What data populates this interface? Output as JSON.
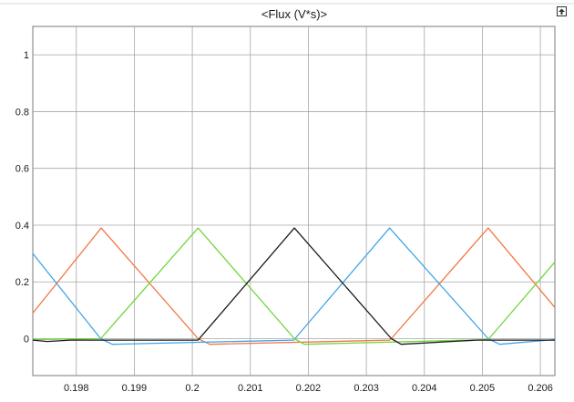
{
  "title": "<Flux (V*s)>",
  "icons": {
    "undock": "undock-icon"
  },
  "chart_data": {
    "type": "line",
    "title": "<Flux (V*s)>",
    "xlabel": "",
    "ylabel": "",
    "xlim": [
      0.19725,
      0.20625
    ],
    "ylim": [
      -0.13,
      1.1
    ],
    "grid": true,
    "legend": "none",
    "x_ticks": [
      0.198,
      0.199,
      0.2,
      0.201,
      0.202,
      0.203,
      0.204,
      0.205,
      0.206
    ],
    "x_tick_labels": [
      "0.198",
      "0.199",
      "0.2",
      "0.201",
      "0.202",
      "0.203",
      "0.204",
      "0.205",
      "0.206"
    ],
    "y_ticks": [
      0,
      0.2,
      0.4,
      0.6,
      0.8,
      1
    ],
    "y_tick_labels": [
      "0",
      "0.2",
      "0.4",
      "0.6",
      "0.8",
      "1"
    ],
    "series": [
      {
        "color": "#f37545",
        "points": [
          [
            0.19725,
            0.09
          ],
          [
            0.19843,
            0.39
          ],
          [
            0.2001,
            0.0
          ],
          [
            0.2003,
            -0.02
          ],
          [
            0.2034,
            -0.005
          ],
          [
            0.20343,
            0.0
          ],
          [
            0.2051,
            0.39
          ],
          [
            0.20625,
            0.11
          ]
        ]
      },
      {
        "color": "#3fa4e8",
        "points": [
          [
            0.19725,
            0.3
          ],
          [
            0.19842,
            0.0
          ],
          [
            0.19862,
            -0.02
          ],
          [
            0.20175,
            -0.005
          ],
          [
            0.20177,
            0.0
          ],
          [
            0.2034,
            0.39
          ],
          [
            0.2051,
            0.0
          ],
          [
            0.2053,
            -0.02
          ],
          [
            0.20625,
            -0.003
          ]
        ]
      },
      {
        "color": "#6fd63d",
        "points": [
          [
            0.19725,
            -0.003
          ],
          [
            0.19842,
            0.0
          ],
          [
            0.2001,
            0.39
          ],
          [
            0.20176,
            0.0
          ],
          [
            0.20193,
            -0.02
          ],
          [
            0.2051,
            -0.003
          ],
          [
            0.20625,
            0.27
          ]
        ]
      },
      {
        "color": "#1a1a1a",
        "points": [
          [
            0.19725,
            -0.005
          ],
          [
            0.1975,
            -0.01
          ],
          [
            0.1979,
            -0.005
          ],
          [
            0.1985,
            -0.005
          ],
          [
            0.2001,
            -0.005
          ],
          [
            0.20176,
            0.39
          ],
          [
            0.20343,
            0.0
          ],
          [
            0.2036,
            -0.02
          ],
          [
            0.2049,
            -0.005
          ],
          [
            0.20625,
            -0.005
          ]
        ]
      }
    ]
  }
}
